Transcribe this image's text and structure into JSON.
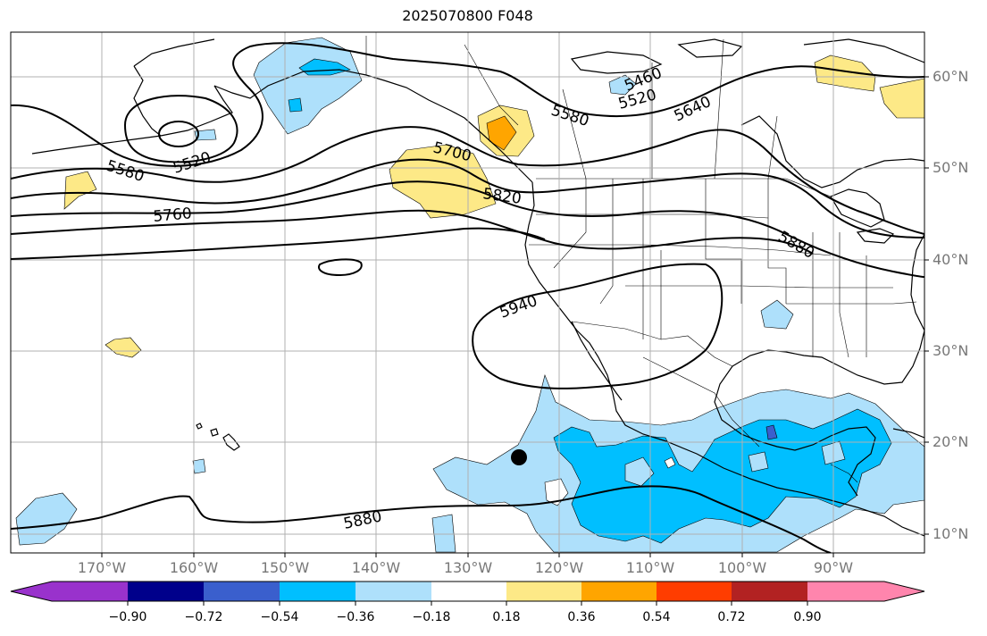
{
  "title": "2025070800 F048",
  "map": {
    "region": "North-east Pacific and North America",
    "projection": "equirectangular",
    "lon_range": [
      -180,
      -80
    ],
    "lat_range": [
      8,
      65
    ],
    "lat_labels": [
      "60°N",
      "50°N",
      "40°N",
      "30°N",
      "20°N",
      "10°N"
    ],
    "lon_labels": [
      "170°W",
      "160°W",
      "150°W",
      "140°W",
      "130°W",
      "120°W",
      "110°W",
      "100°W",
      "90°W"
    ],
    "contour_labels": [
      "5460",
      "5520",
      "5520",
      "5580",
      "5580",
      "5640",
      "5700",
      "5760",
      "5820",
      "5880",
      "5880",
      "5940"
    ],
    "marker": "storm-center-dot",
    "colors": {
      "land_outline": "#000000",
      "grid": "#b0b0b0",
      "contour": "#000000",
      "light_blue": "#aee0fb",
      "deep_sky_blue": "#00bfff",
      "royal_blue": "#3a5fcd",
      "khaki": "#fde987",
      "orange": "#ffa500"
    }
  },
  "colorbar": {
    "ticks": [
      "−0.90",
      "−0.72",
      "−0.54",
      "−0.36",
      "−0.18",
      "0.18",
      "0.36",
      "0.54",
      "0.72",
      "0.90"
    ],
    "colors": [
      "#9932cc",
      "#00008b",
      "#3a5fcd",
      "#00bfff",
      "#aee0fb",
      "#ffffff",
      "#fde987",
      "#ffa500",
      "#ff3d00",
      "#b22222",
      "#ff85ad"
    ]
  }
}
